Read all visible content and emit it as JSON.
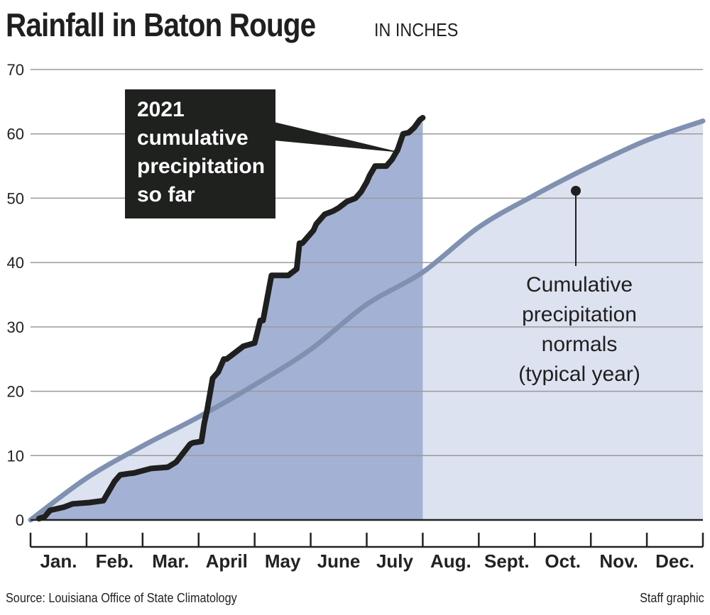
{
  "header": {
    "title": "Rainfall in Baton Rouge",
    "subtitle": "IN INCHES"
  },
  "footer": {
    "source": "Source: Louisiana Office of State Climatology",
    "credit": "Staff graphic"
  },
  "annotations": {
    "callout_2021": [
      "2021",
      "cumulative",
      "precipitation",
      "so far"
    ],
    "callout_normals": [
      "Cumulative",
      "precipitation",
      "normals",
      "(typical year)"
    ]
  },
  "colors": {
    "area_2021": "#a3b2d4",
    "area_normal": "#dde2f0",
    "line_2021": "#1f1f1f",
    "line_normal": "#8090b0",
    "callout_bg": "#1f211f"
  },
  "chart_data": {
    "type": "line",
    "title": "Rainfall in Baton Rouge",
    "subtitle": "IN INCHES",
    "x_axis": {
      "categories": [
        "Jan.",
        "Feb.",
        "Mar.",
        "April",
        "May",
        "June",
        "July",
        "Aug.",
        "Sept.",
        "Oct.",
        "Nov.",
        "Dec."
      ],
      "range": [
        0,
        12
      ]
    },
    "y_axis": {
      "range": [
        0,
        70
      ],
      "ticks": [
        0,
        10,
        20,
        30,
        40,
        50,
        60,
        70
      ]
    },
    "grid": true,
    "series": [
      {
        "name": "2021 cumulative precipitation so far",
        "style": "step-line with filled area",
        "x": [
          0.15,
          0.25,
          0.35,
          0.6,
          0.75,
          1.05,
          1.3,
          1.5,
          1.6,
          1.75,
          1.85,
          2.15,
          2.45,
          2.6,
          2.85,
          2.9,
          3.05,
          3.1,
          3.15,
          3.25,
          3.35,
          3.45,
          3.5,
          3.8,
          4.0,
          4.1,
          4.15,
          4.3,
          4.6,
          4.75,
          4.8,
          4.85,
          5.05,
          5.1,
          5.25,
          5.4,
          5.5,
          5.65,
          5.8,
          5.9,
          6.0,
          6.05,
          6.15,
          6.35,
          6.45,
          6.55,
          6.65,
          6.75,
          6.85,
          6.95,
          7.0
        ],
        "y": [
          0.2,
          0.5,
          1.5,
          2.0,
          2.5,
          2.7,
          3.0,
          6.0,
          7.0,
          7.2,
          7.3,
          8.0,
          8.2,
          9.0,
          11.8,
          12.0,
          12.2,
          15.0,
          17.0,
          22.0,
          23.0,
          25.0,
          25.0,
          27.0,
          27.5,
          31.0,
          31.0,
          38.0,
          38.0,
          39.0,
          43.0,
          43.0,
          45.0,
          46.0,
          47.5,
          48.0,
          48.5,
          49.5,
          50.0,
          51.0,
          52.5,
          53.5,
          55.0,
          55.0,
          56.0,
          57.5,
          60.0,
          60.2,
          61.0,
          62.2,
          62.5
        ]
      },
      {
        "name": "Cumulative precipitation normals (typical year)",
        "style": "smooth line with filled area",
        "x": [
          0,
          1,
          2,
          3,
          4,
          5,
          6,
          7,
          8,
          9,
          10,
          11,
          12
        ],
        "y": [
          0,
          6.5,
          11.5,
          16.0,
          21.0,
          26.5,
          33.5,
          38.5,
          45.5,
          50.5,
          55.0,
          59.0,
          62.0
        ]
      }
    ]
  }
}
